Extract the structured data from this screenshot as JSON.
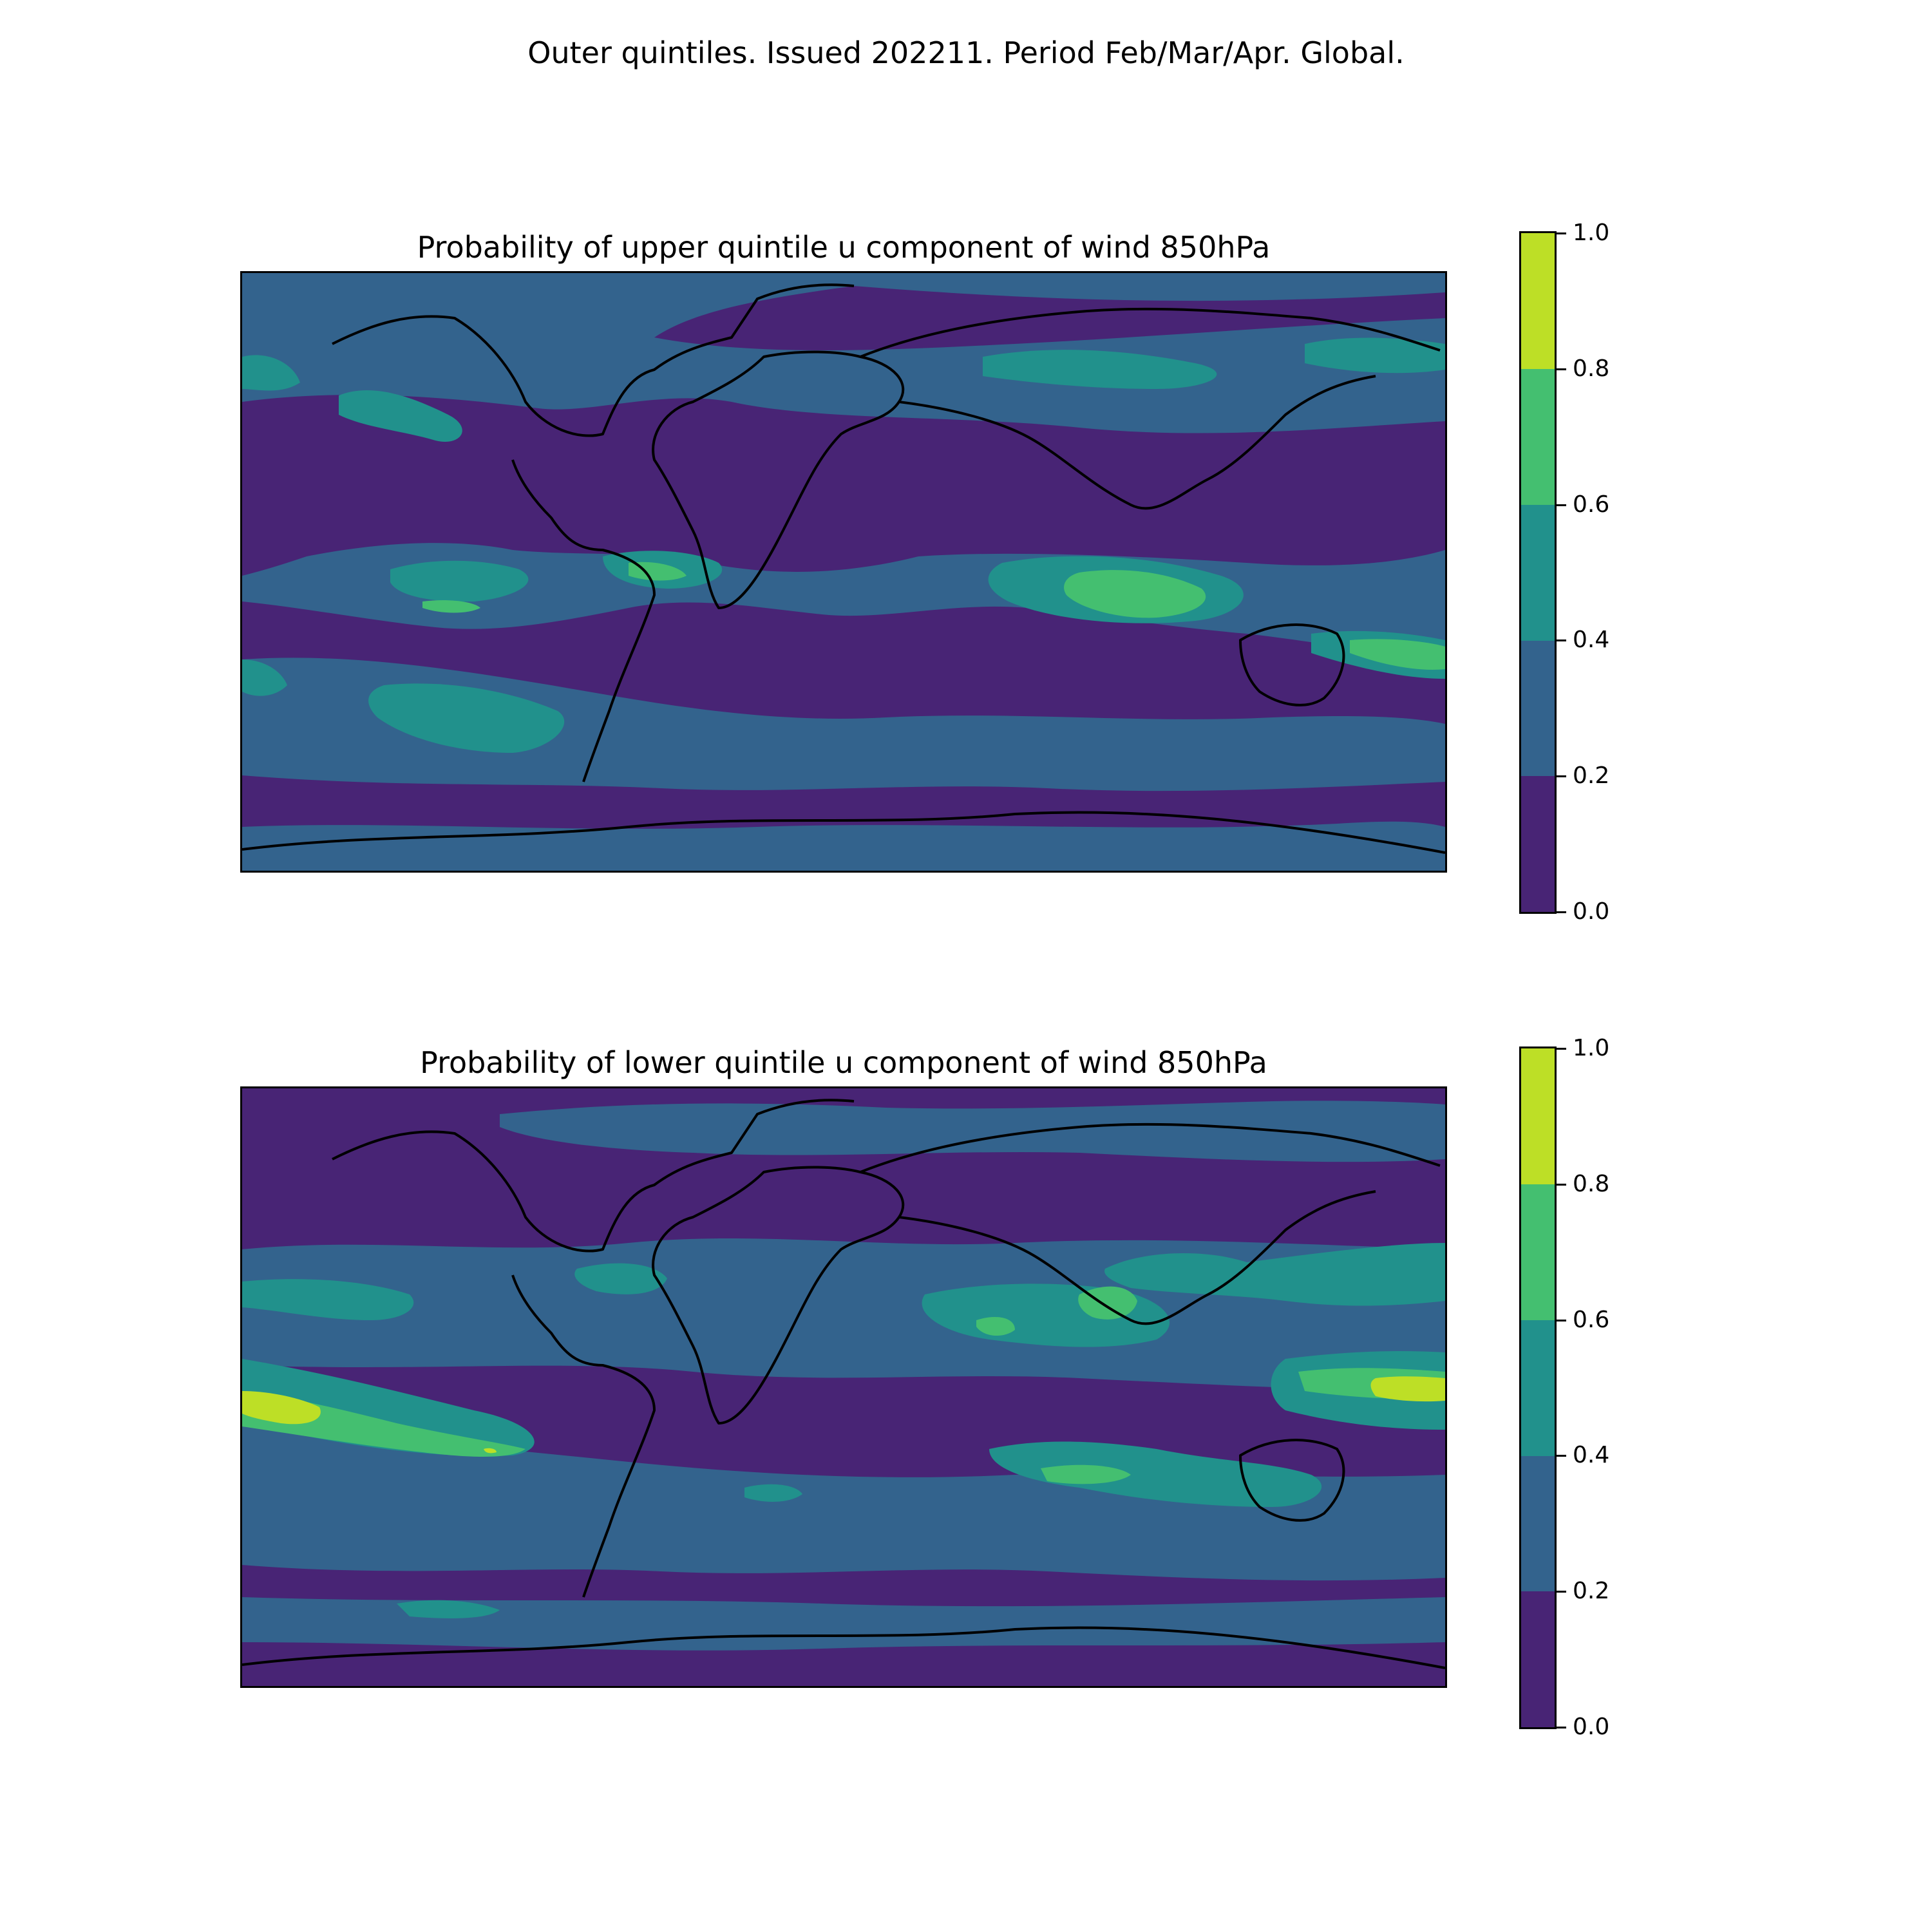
{
  "suptitle": "Outer quintiles. Issued 202211. Period Feb/Mar/Apr. Global.",
  "panels": [
    {
      "title": "Probability of upper quintile u component of wind 850hPa"
    },
    {
      "title": "Probability of lower quintile u component of wind 850hPa"
    }
  ],
  "colorbar": {
    "ticks": [
      "0.0",
      "0.2",
      "0.4",
      "0.6",
      "0.8",
      "1.0"
    ],
    "bins": [
      {
        "range": "0.0–0.2",
        "color": "#482475"
      },
      {
        "range": "0.2–0.4",
        "color": "#33638d"
      },
      {
        "range": "0.4–0.6",
        "color": "#21918c"
      },
      {
        "range": "0.6–0.8",
        "color": "#44bf70"
      },
      {
        "range": "0.8–1.0",
        "color": "#bddf26"
      }
    ]
  },
  "map": {
    "projection": "PlateCarree",
    "extent_lon": [
      -180,
      180
    ],
    "extent_lat": [
      -90,
      90
    ],
    "coastlines": true
  }
}
